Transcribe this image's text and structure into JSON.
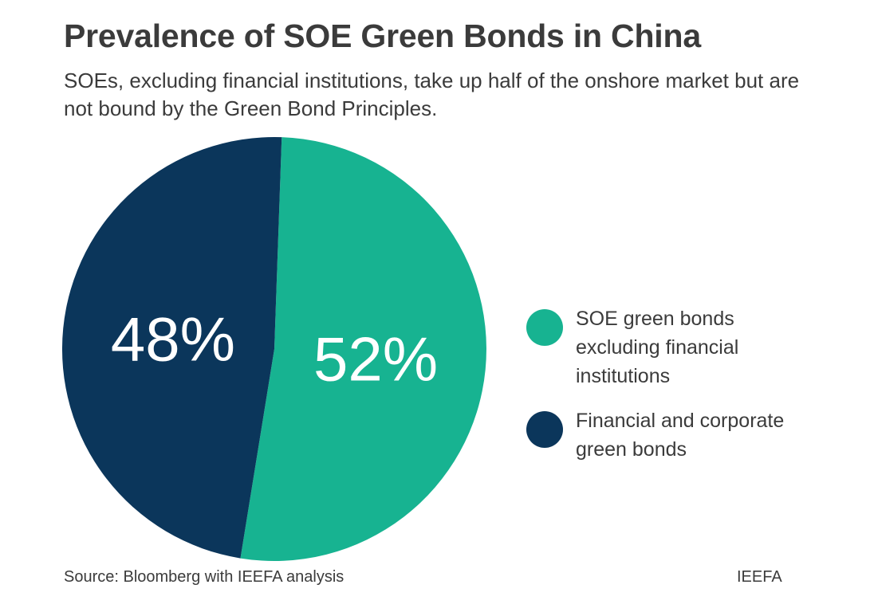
{
  "chart_data": {
    "type": "pie",
    "title": "Prevalence of SOE Green Bonds in China",
    "subtitle": "SOEs, excluding financial institutions, take up half of the onshore market but are not bound by the Green Bond Principles.",
    "slices": [
      {
        "name": "SOE green bonds excluding financial institutions",
        "value": 52,
        "label": "52%",
        "color": "#17b391"
      },
      {
        "name": "Financial and corporate green bonds",
        "value": 48,
        "label": "48%",
        "color": "#0b365b"
      }
    ],
    "legend_position": "right",
    "source": "Source: Bloomberg with IEEFA analysis",
    "brand": "IEEFA"
  }
}
